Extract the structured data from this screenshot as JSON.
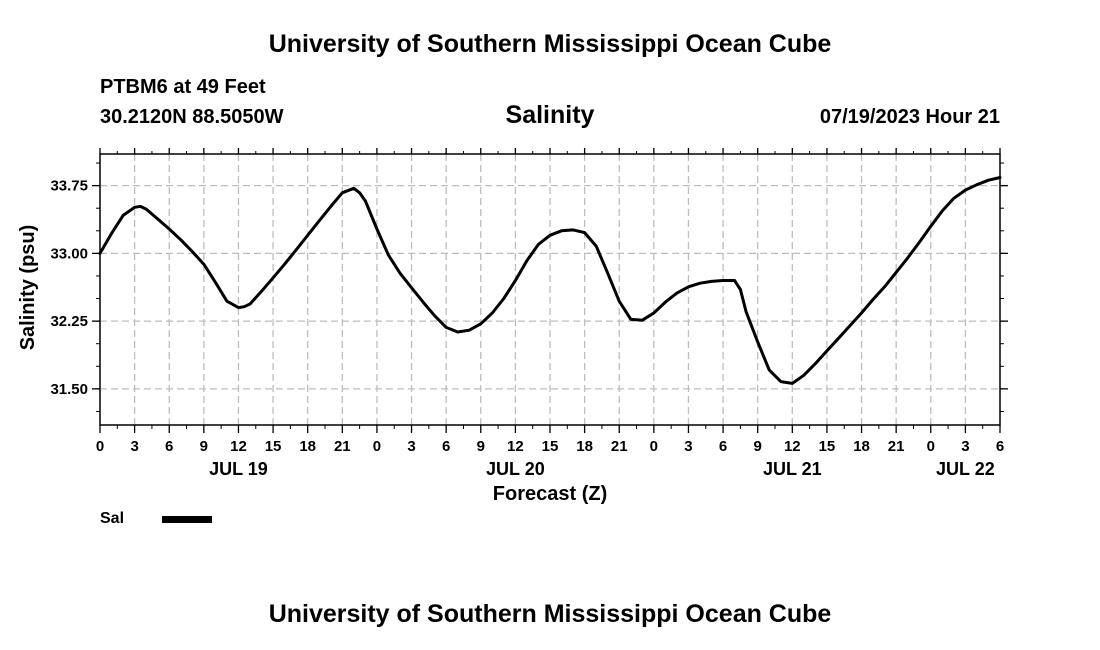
{
  "header": {
    "title": "University of Southern Mississippi Ocean Cube",
    "station": "PTBM6 at 49 Feet",
    "coords": "30.2120N  88.5050W",
    "datetime": "07/19/2023 Hour 21"
  },
  "footer": {
    "title": "University of Southern Mississippi Ocean Cube"
  },
  "legend": {
    "label": "Sal",
    "color": "#000000"
  },
  "chart_data": {
    "type": "line",
    "title": "Salinity",
    "xlabel": "Forecast (Z)",
    "ylabel": "Salinity (psu)",
    "grid": true,
    "xlim": [
      0,
      78
    ],
    "ylim": [
      31.1,
      34.1
    ],
    "x_unit": "hours from 07/19/2023 00Z",
    "x_ticks": [
      0,
      3,
      6,
      9,
      12,
      15,
      18,
      21,
      24,
      27,
      30,
      33,
      36,
      39,
      42,
      45,
      48,
      51,
      54,
      57,
      60,
      63,
      66,
      69,
      72,
      75,
      78
    ],
    "x_tick_labels": [
      "0",
      "3",
      "6",
      "9",
      "12",
      "15",
      "18",
      "21",
      "0",
      "3",
      "6",
      "9",
      "12",
      "15",
      "18",
      "21",
      "0",
      "3",
      "6",
      "9",
      "12",
      "15",
      "18",
      "21",
      "0",
      "3",
      "6"
    ],
    "date_labels": [
      {
        "x": 12,
        "label": "JUL 19"
      },
      {
        "x": 36,
        "label": "JUL 20"
      },
      {
        "x": 60,
        "label": "JUL 21"
      },
      {
        "x": 75,
        "label": "JUL 22"
      }
    ],
    "y_ticks": [
      31.5,
      32.25,
      33.0,
      33.75
    ],
    "y_tick_labels": [
      "31.50",
      "32.25",
      "33.00",
      "33.75"
    ],
    "y_minor_step": 0.25,
    "series": [
      {
        "name": "Sal",
        "x": [
          0,
          1,
          2,
          3,
          3.5,
          4,
          5,
          6,
          7,
          8,
          9,
          10,
          11,
          12,
          12.5,
          13,
          14,
          15,
          16,
          17,
          18,
          19,
          20,
          21,
          22,
          22.5,
          23,
          24,
          25,
          26,
          27,
          28,
          29,
          30,
          31,
          32,
          33,
          34,
          35,
          36,
          37,
          38,
          39,
          40,
          41,
          42,
          43,
          44,
          45,
          46,
          47,
          48,
          49,
          50,
          51,
          52,
          53,
          54,
          55,
          55.5,
          56,
          57,
          58,
          59,
          60,
          61,
          62,
          63,
          64,
          65,
          66,
          67,
          68,
          69,
          70,
          71,
          72,
          73,
          74,
          75,
          76,
          77,
          78
        ],
        "values": [
          33.0,
          33.22,
          33.42,
          33.51,
          33.52,
          33.49,
          33.38,
          33.27,
          33.15,
          33.02,
          32.88,
          32.68,
          32.47,
          32.4,
          32.41,
          32.44,
          32.58,
          32.73,
          32.88,
          33.04,
          33.2,
          33.36,
          33.52,
          33.67,
          33.72,
          33.67,
          33.58,
          33.27,
          32.98,
          32.78,
          32.62,
          32.46,
          32.31,
          32.18,
          32.13,
          32.15,
          32.22,
          32.34,
          32.5,
          32.7,
          32.92,
          33.1,
          33.2,
          33.25,
          33.26,
          33.23,
          33.08,
          32.78,
          32.47,
          32.27,
          32.26,
          32.34,
          32.46,
          32.56,
          32.63,
          32.67,
          32.69,
          32.7,
          32.7,
          32.6,
          32.35,
          32.02,
          31.71,
          31.58,
          31.56,
          31.65,
          31.78,
          31.92,
          32.06,
          32.2,
          32.34,
          32.49,
          32.63,
          32.79,
          32.95,
          33.12,
          33.3,
          33.47,
          33.61,
          33.7,
          33.76,
          33.81,
          33.84
        ]
      }
    ]
  }
}
